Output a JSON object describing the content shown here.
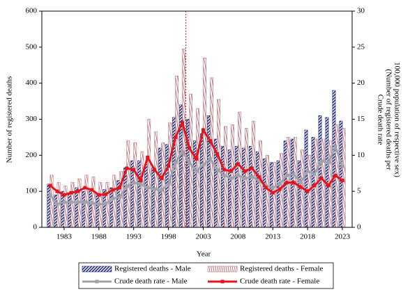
{
  "chart_data": {
    "type": "bar",
    "x": [
      1981,
      1982,
      1983,
      1984,
      1985,
      1986,
      1987,
      1988,
      1989,
      1990,
      1991,
      1992,
      1993,
      1994,
      1995,
      1996,
      1997,
      1998,
      1999,
      2000,
      2001,
      2002,
      2003,
      2004,
      2005,
      2006,
      2007,
      2008,
      2009,
      2010,
      2011,
      2012,
      2013,
      2014,
      2015,
      2016,
      2017,
      2018,
      2019,
      2020,
      2021,
      2022,
      2023
    ],
    "xlabel": "Year",
    "ylabel": "Number of registered deaths",
    "y2label": [
      "Crude death rate",
      "(Number of registered deaths per",
      "100,000 population of respective sex)"
    ],
    "xlim": [
      1979.8,
      2024.4
    ],
    "xticks": [
      1983,
      1988,
      1993,
      1998,
      2003,
      2008,
      2013,
      2018,
      2023
    ],
    "ylim": [
      0,
      600
    ],
    "yticks": [
      0,
      100,
      200,
      300,
      400,
      500,
      600
    ],
    "y2lim": [
      0,
      30
    ],
    "y2ticks": [
      0,
      5,
      10,
      15,
      20,
      25,
      30
    ],
    "reference_line": {
      "x": 2000.5,
      "color": "#e8262b"
    },
    "legend": "bottom",
    "series": [
      {
        "name": "Registered deaths - Male",
        "type": "bar",
        "color": "#1f2a7a",
        "values": [
          120,
          90,
          100,
          95,
          110,
          100,
          105,
          95,
          105,
          110,
          130,
          165,
          185,
          185,
          175,
          165,
          220,
          230,
          305,
          340,
          300,
          240,
          260,
          310,
          245,
          225,
          215,
          225,
          220,
          225,
          210,
          190,
          180,
          185,
          240,
          245,
          185,
          270,
          250,
          310,
          305,
          380,
          295
        ]
      },
      {
        "name": "Registered deaths - Female",
        "type": "bar",
        "color": "#c0707a",
        "values": [
          145,
          125,
          115,
          125,
          135,
          145,
          140,
          125,
          125,
          145,
          155,
          240,
          235,
          210,
          300,
          265,
          235,
          290,
          420,
          495,
          370,
          330,
          470,
          415,
          355,
          280,
          285,
          320,
          275,
          295,
          240,
          200,
          180,
          205,
          250,
          250,
          215,
          200,
          245,
          245,
          240,
          285,
          275
        ]
      },
      {
        "name": "Crude death rate - Male",
        "type": "line",
        "axis": "y2",
        "color": "#9ea3ab",
        "values": [
          4.5,
          3.2,
          3.5,
          3.5,
          3.5,
          3.5,
          3.4,
          3.2,
          3.3,
          4.0,
          4.2,
          5.7,
          6.2,
          6.0,
          5.5,
          5.3,
          5.2,
          6.0,
          9.0,
          10.5,
          9.0,
          7.8,
          8.7,
          9.5,
          8.0,
          7.2,
          6.8,
          7.2,
          6.8,
          7.0,
          6.5,
          5.8,
          5.5,
          6.0,
          7.2,
          7.4,
          6.2,
          7.8,
          7.4,
          9.2,
          9.0,
          11.2,
          8.5
        ]
      },
      {
        "name": "Crude death rate - Female",
        "type": "line",
        "axis": "y2",
        "color": "#e8121b",
        "values": [
          5.8,
          5.0,
          4.5,
          4.8,
          5.0,
          5.5,
          5.2,
          4.5,
          4.6,
          5.2,
          5.5,
          8.2,
          8.0,
          6.5,
          9.7,
          8.0,
          6.8,
          8.5,
          12.5,
          14.5,
          11.0,
          9.5,
          13.5,
          12.0,
          10.2,
          8.0,
          7.8,
          8.8,
          7.8,
          8.2,
          7.0,
          5.5,
          4.8,
          5.3,
          6.2,
          6.2,
          5.6,
          5.0,
          5.8,
          6.8,
          5.8,
          7.2,
          6.5
        ]
      }
    ]
  }
}
